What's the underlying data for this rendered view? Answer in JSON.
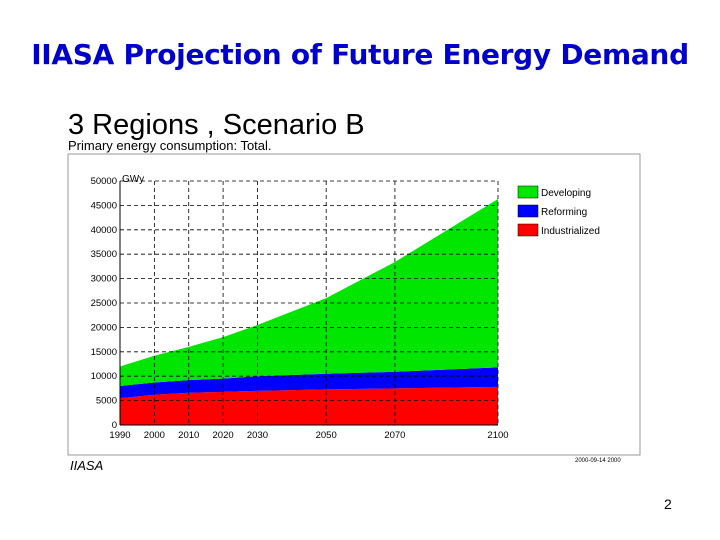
{
  "slide": {
    "title": "IIASA Projection of Future Energy Demand",
    "number": "2"
  },
  "colors": {
    "title": "#0000cc",
    "developing": "#00e600",
    "reforming": "#0000ff",
    "industrialized": "#ff0000"
  },
  "chart_data": {
    "type": "area",
    "stacked": true,
    "title": "3 Regions , Scenario B",
    "subtitle": "Primary energy consumption: Total.",
    "y_unit": "GWy",
    "ylim": [
      0,
      50000
    ],
    "y_ticks": [
      "0",
      "5000",
      "10000",
      "15000",
      "20000",
      "25000",
      "30000",
      "35000",
      "40000",
      "45000",
      "50000"
    ],
    "x_ticks": [
      "1990",
      "2000",
      "2010",
      "2020",
      "2030",
      "2050",
      "2070",
      "2100"
    ],
    "x": [
      1990,
      2000,
      2010,
      2020,
      2030,
      2050,
      2070,
      2100
    ],
    "grid": true,
    "legend_position": "right",
    "source": "IIASA",
    "footer_code": "2000-09-14 2000",
    "series": [
      {
        "name": "Industrialized",
        "color": "#ff0000",
        "values": [
          5500,
          6200,
          6600,
          6800,
          7000,
          7300,
          7500,
          7800
        ]
      },
      {
        "name": "Reforming",
        "color": "#0000ff",
        "values": [
          2500,
          2500,
          2600,
          2700,
          3000,
          3200,
          3400,
          4000
        ]
      },
      {
        "name": "Developing",
        "color": "#00e600",
        "values": [
          4000,
          5500,
          6800,
          8500,
          10500,
          15500,
          22500,
          34500
        ]
      }
    ],
    "legend": [
      "Developing",
      "Reforming",
      "Industrialized"
    ]
  }
}
